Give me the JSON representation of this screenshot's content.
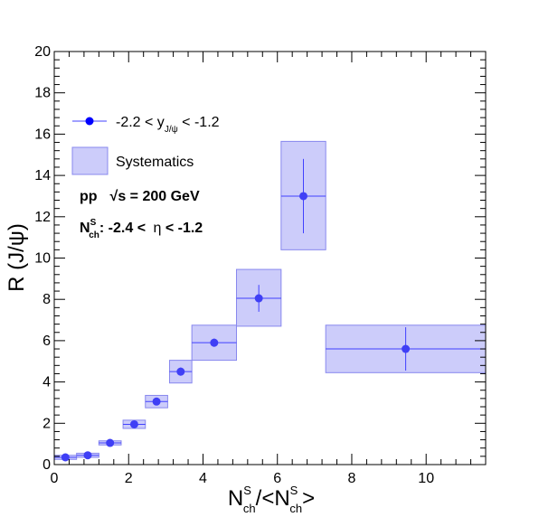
{
  "chart_data": {
    "type": "scatter",
    "xlim": [
      0,
      11.6
    ],
    "ylim": [
      0,
      20
    ],
    "x_ticks": [
      "0",
      "2",
      "4",
      "6",
      "8",
      "10"
    ],
    "x_tick_values": [
      0,
      2,
      4,
      6,
      8,
      10
    ],
    "y_ticks": [
      "0",
      "2",
      "4",
      "6",
      "8",
      "10",
      "12",
      "14",
      "16",
      "18",
      "20"
    ],
    "y_tick_values": [
      0,
      2,
      4,
      6,
      8,
      10,
      12,
      14,
      16,
      18,
      20
    ],
    "ylabel": "R (J/ψ)",
    "xlabel": {
      "n1": "N",
      "sup1": "S",
      "sub1": "ch",
      "mid": "/<N",
      "sup2": "S",
      "sub2": "ch",
      "end": ">"
    },
    "grid": false,
    "legend_placement": "top-left",
    "legend": {
      "series_prefix": "-2.2 < y",
      "series_sub": "J/ψ",
      "series_suffix": " < -1.2",
      "systematics_label": "Systematics"
    },
    "annotation": {
      "line1_a": "pp",
      "line1_b": "√s",
      "line1_c": " = 200 GeV",
      "line2_a": "N",
      "line2_sup": "S",
      "line2_sub": "ch",
      "line2_b": ": -2.4 < ",
      "line2_eta": "η",
      "line2_c": " < -1.2"
    },
    "series": [
      {
        "points": [
          {
            "x": 0.3,
            "y": 0.35,
            "xerr": 0.3,
            "yerr": 0.15,
            "sys_x": [
              0.0,
              0.6
            ],
            "sys_y": [
              0.25,
              0.45
            ]
          },
          {
            "x": 0.9,
            "y": 0.45,
            "xerr": 0.3,
            "yerr": 0.15,
            "sys_x": [
              0.6,
              1.2
            ],
            "sys_y": [
              0.35,
              0.55
            ]
          },
          {
            "x": 1.5,
            "y": 1.05,
            "xerr": 0.3,
            "yerr": 0.15,
            "sys_x": [
              1.2,
              1.8
            ],
            "sys_y": [
              0.95,
              1.15
            ]
          },
          {
            "x": 2.15,
            "y": 1.95,
            "xerr": 0.3,
            "yerr": 0.15,
            "sys_x": [
              1.85,
              2.45
            ],
            "sys_y": [
              1.75,
              2.15
            ]
          },
          {
            "x": 2.75,
            "y": 3.05,
            "xerr": 0.3,
            "yerr": 0.15,
            "sys_x": [
              2.45,
              3.05
            ],
            "sys_y": [
              2.75,
              3.35
            ]
          },
          {
            "x": 3.4,
            "y": 4.5,
            "xerr": 0.3,
            "yerr": 0.2,
            "sys_x": [
              3.1,
              3.7
            ],
            "sys_y": [
              3.95,
              5.05
            ]
          },
          {
            "x": 4.3,
            "y": 5.9,
            "xerr": 0.6,
            "yerr": 0.2,
            "sys_x": [
              3.7,
              4.9
            ],
            "sys_y": [
              5.05,
              6.75
            ]
          },
          {
            "x": 5.5,
            "y": 8.05,
            "xerr": 0.6,
            "yerr": 0.65,
            "sys_x": [
              4.9,
              6.1
            ],
            "sys_y": [
              6.7,
              9.45
            ]
          },
          {
            "x": 6.7,
            "y": 13.0,
            "xerr": 0.6,
            "yerr": 1.8,
            "sys_x": [
              6.1,
              7.3
            ],
            "sys_y": [
              10.4,
              15.65
            ]
          },
          {
            "x": 9.45,
            "y": 5.6,
            "xerr": 2.15,
            "yerr": 1.05,
            "sys_x": [
              7.3,
              11.6
            ],
            "sys_y": [
              4.45,
              6.75
            ]
          }
        ]
      }
    ]
  },
  "colors": {
    "marker": "#3f3ff5",
    "error_bar": "#4040ff",
    "sys_fill": "#ccccfa",
    "sys_stroke": "#8888ee",
    "axis": "#000000"
  }
}
